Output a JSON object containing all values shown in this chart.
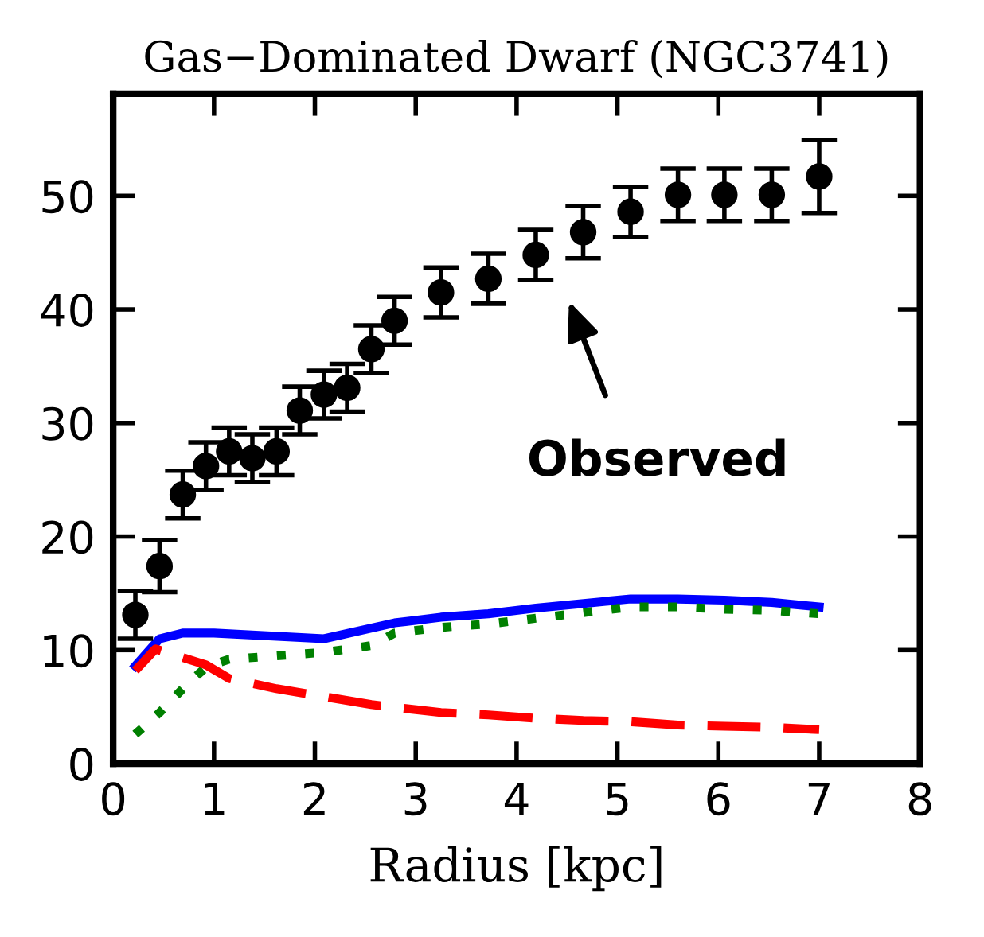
{
  "chart_data": {
    "type": "scatter",
    "title": "Gas−Dominated Dwarf (NGC3741)",
    "xlabel": "Radius [kpc]",
    "xlim": [
      0,
      8
    ],
    "xticks": [
      0,
      1,
      2,
      3,
      4,
      5,
      6,
      7,
      8
    ],
    "ylim": [
      0,
      59
    ],
    "yticks": [
      0,
      10,
      20,
      30,
      40,
      50
    ],
    "grid": false,
    "legend": false,
    "series": [
      {
        "color": "#000000",
        "marker": "circle",
        "x": [
          0.22,
          0.46,
          0.69,
          0.92,
          1.15,
          1.38,
          1.62,
          1.85,
          2.09,
          2.32,
          2.56,
          2.79,
          3.25,
          3.72,
          4.19,
          4.66,
          5.13,
          5.6,
          6.06,
          6.53,
          7.0
        ],
        "values": [
          13.1,
          17.4,
          23.7,
          26.2,
          27.5,
          26.9,
          27.5,
          31.1,
          32.5,
          33.1,
          36.5,
          39.0,
          41.5,
          42.7,
          44.8,
          46.8,
          48.6,
          50.1,
          50.1,
          50.1,
          51.7
        ],
        "errors": [
          2.1,
          2.3,
          2.1,
          2.1,
          2.1,
          2.1,
          2.1,
          2.1,
          2.1,
          2.1,
          2.1,
          2.1,
          2.2,
          2.2,
          2.2,
          2.3,
          2.2,
          2.3,
          2.3,
          2.3,
          3.2
        ]
      },
      {
        "type": "line",
        "color": "#0000ff",
        "line_style": "solid",
        "x": [
          0.22,
          0.46,
          0.69,
          1.0,
          2.09,
          2.79,
          3.25,
          3.72,
          4.19,
          5.13,
          5.6,
          6.06,
          6.53,
          7.0
        ],
        "values": [
          8.6,
          11.0,
          11.5,
          11.5,
          11.0,
          12.4,
          12.9,
          13.2,
          13.7,
          14.5,
          14.5,
          14.4,
          14.2,
          13.8
        ]
      },
      {
        "type": "line",
        "color": "#008000",
        "line_style": "dotted",
        "x": [
          0.22,
          0.46,
          0.69,
          0.92,
          1.15,
          1.62,
          2.09,
          2.56,
          2.79,
          3.25,
          3.72,
          4.19,
          5.13,
          5.6,
          6.06,
          6.53,
          7.0
        ],
        "values": [
          2.6,
          4.5,
          6.6,
          8.5,
          9.2,
          9.5,
          9.8,
          10.4,
          11.5,
          12.0,
          12.3,
          12.8,
          13.8,
          13.8,
          13.6,
          13.5,
          13.2
        ]
      },
      {
        "type": "line",
        "color": "#ff0000",
        "line_style": "dashed",
        "x": [
          0.22,
          0.42,
          0.92,
          1.15,
          1.62,
          2.09,
          2.56,
          3.25,
          3.72,
          4.19,
          4.66,
          5.13,
          5.6,
          6.06,
          6.53,
          7.0
        ],
        "values": [
          8.2,
          10.1,
          8.7,
          7.5,
          6.6,
          5.9,
          5.2,
          4.5,
          4.3,
          4.0,
          3.8,
          3.7,
          3.4,
          3.3,
          3.2,
          3.0
        ]
      }
    ],
    "annotations": [
      "Observed"
    ]
  }
}
